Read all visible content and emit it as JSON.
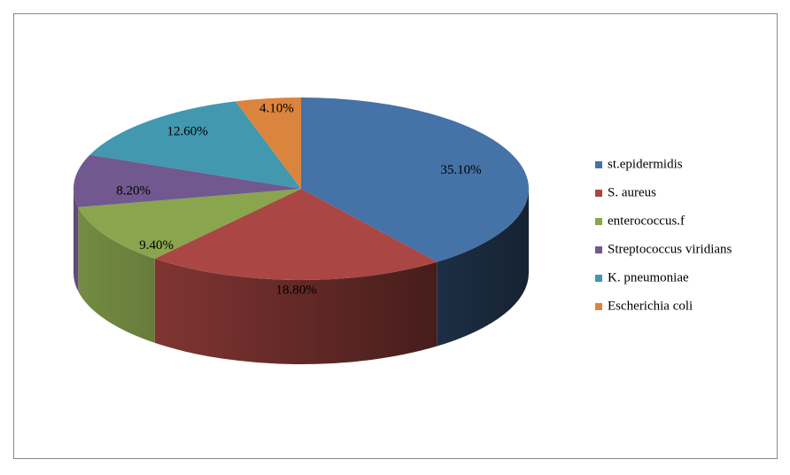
{
  "chart_data": {
    "type": "pie",
    "categories": [
      "st.epidermidis",
      "S. aureus",
      "enterococcus.f",
      "Streptococcus viridians",
      "K. pneumoniae",
      "Escherichia coli"
    ],
    "values": [
      35.1,
      18.8,
      9.4,
      8.2,
      12.6,
      4.1
    ],
    "value_labels": [
      "35.10%",
      "18.80%",
      "9.40%",
      "8.20%",
      "12.60%",
      "4.10%"
    ],
    "colors": [
      "#4572A7",
      "#AA4643",
      "#89A54E",
      "#71588F",
      "#4198AF",
      "#DB843D"
    ],
    "legend": "right"
  }
}
